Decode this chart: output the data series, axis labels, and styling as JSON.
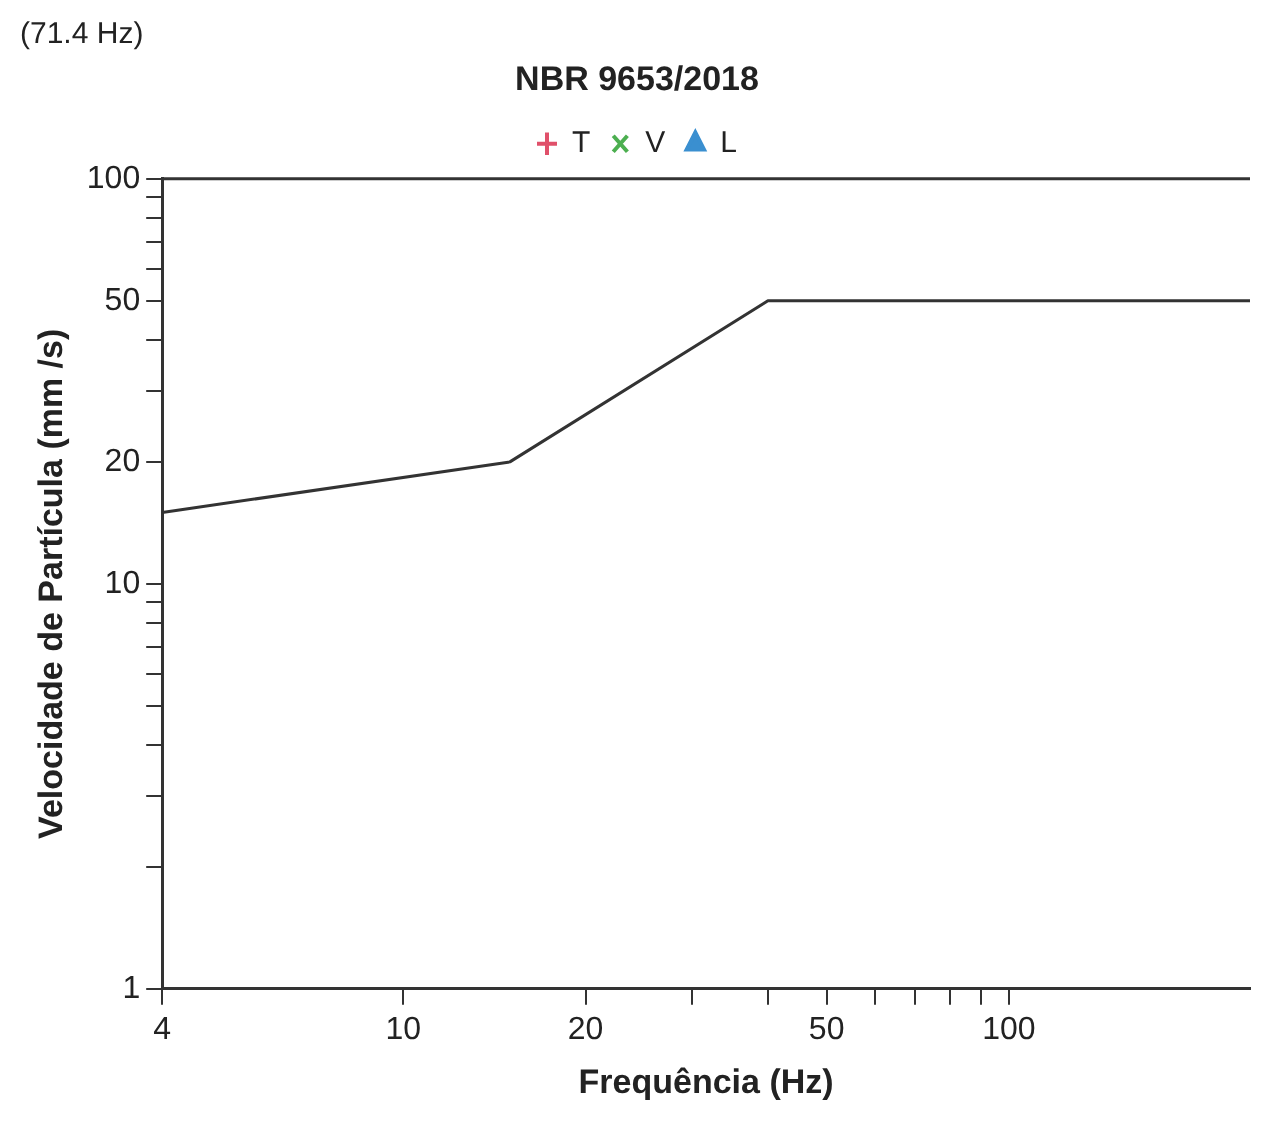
{
  "chart_data": {
    "type": "line",
    "title": "NBR 9653/2018",
    "xlabel": "Frequência (Hz)",
    "ylabel": "Velocidade de Partícula (mm /s)",
    "annotations": [
      "(71.4 Hz)"
    ],
    "log": "xy",
    "grid": false,
    "legend": "top",
    "marker": "none",
    "line_style": "solid",
    "xlim": [
      4,
      250
    ],
    "ylim": [
      1,
      100
    ],
    "xticks": [
      4,
      10,
      20,
      {
        "value": 30,
        "label": null
      },
      {
        "value": 40,
        "label": null
      },
      50,
      {
        "value": 60,
        "label": null
      },
      {
        "value": 70,
        "label": null
      },
      {
        "value": 80,
        "label": null
      },
      {
        "value": 90,
        "label": null
      },
      100
    ],
    "yticks": [
      1,
      {
        "value": 2,
        "label": null
      },
      {
        "value": 3,
        "label": null
      },
      {
        "value": 4,
        "label": null
      },
      {
        "value": 5,
        "label": null
      },
      {
        "value": 6,
        "label": null
      },
      {
        "value": 7,
        "label": null
      },
      {
        "value": 8,
        "label": null
      },
      {
        "value": 9,
        "label": null
      },
      10,
      20,
      {
        "value": 30,
        "label": null
      },
      {
        "value": 40,
        "label": null
      },
      50,
      {
        "value": 60,
        "label": null
      },
      {
        "value": 70,
        "label": null
      },
      {
        "value": 80,
        "label": null
      },
      {
        "value": 90,
        "label": null
      },
      100
    ],
    "series": [
      {
        "color": "#333333",
        "x": [
          4,
          15,
          40,
          250
        ],
        "values": [
          15,
          20,
          50,
          50
        ]
      },
      {
        "name": "T",
        "type": "scatter",
        "marker": "cross",
        "color": "#e0506a"
      },
      {
        "name": "V",
        "type": "scatter",
        "marker": "x",
        "color": "#4caf50"
      },
      {
        "name": "L",
        "type": "scatter",
        "marker": "triangle",
        "color": "#3a8fd0"
      }
    ]
  }
}
